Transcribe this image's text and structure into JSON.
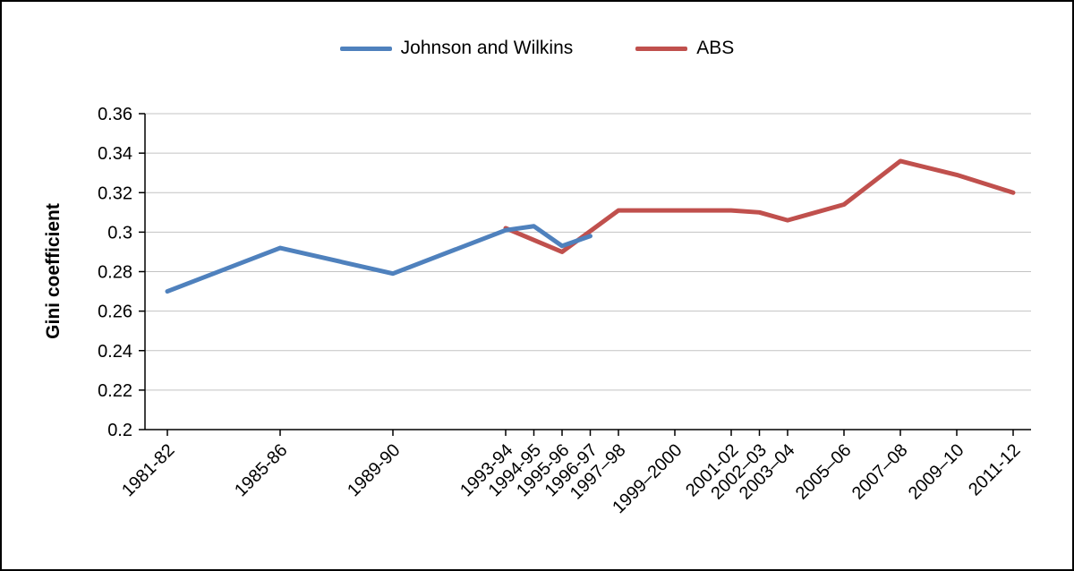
{
  "chart": {
    "ylabel": "Gini coefficient"
  },
  "chart_data": {
    "type": "line",
    "title": "",
    "xlabel": "",
    "ylabel": "Gini coefficient",
    "ylim": [
      0.2,
      0.36
    ],
    "grid": true,
    "legend_position": "top-center",
    "colors": {
      "grid": "#c3c3c3",
      "axis": "#000000",
      "text": "#000000",
      "background": "#ffffff",
      "frame": "#000000"
    },
    "yticks": [
      {
        "value": 0.2,
        "label": "0.2"
      },
      {
        "value": 0.22,
        "label": "0.22"
      },
      {
        "value": 0.24,
        "label": "0.24"
      },
      {
        "value": 0.26,
        "label": "0.26"
      },
      {
        "value": 0.28,
        "label": "0.28"
      },
      {
        "value": 0.3,
        "label": "0.3"
      },
      {
        "value": 0.32,
        "label": "0.32"
      },
      {
        "value": 0.34,
        "label": "0.34"
      },
      {
        "value": 0.36,
        "label": "0.36"
      }
    ],
    "xticks": [
      {
        "year": 1981,
        "label": "1981-82"
      },
      {
        "year": 1985,
        "label": "1985-86"
      },
      {
        "year": 1989,
        "label": "1989-90"
      },
      {
        "year": 1993,
        "label": "1993-94"
      },
      {
        "year": 1994,
        "label": "1994-95"
      },
      {
        "year": 1995,
        "label": "1995-96"
      },
      {
        "year": 1996,
        "label": "1996-97"
      },
      {
        "year": 1997,
        "label": "1997–98"
      },
      {
        "year": 1999,
        "label": "1999–2000"
      },
      {
        "year": 2001,
        "label": "2001-02"
      },
      {
        "year": 2002,
        "label": "2002–03"
      },
      {
        "year": 2003,
        "label": "2003–04"
      },
      {
        "year": 2005,
        "label": "2005–06"
      },
      {
        "year": 2007,
        "label": "2007–08"
      },
      {
        "year": 2009,
        "label": "2009–10"
      },
      {
        "year": 2011,
        "label": "2011-12"
      }
    ],
    "series": [
      {
        "name": "Johnson and Wilkins",
        "color": "#4f81bd",
        "points": [
          [
            1981,
            0.27
          ],
          [
            1985,
            0.292
          ],
          [
            1989,
            0.279
          ],
          [
            1993,
            0.301
          ],
          [
            1994,
            0.303
          ],
          [
            1995,
            0.293
          ],
          [
            1996,
            0.298
          ]
        ]
      },
      {
        "name": "ABS",
        "color": "#c0504d",
        "points": [
          [
            1993,
            0.302
          ],
          [
            1995,
            0.29
          ],
          [
            1997,
            0.311
          ],
          [
            1999,
            0.311
          ],
          [
            2001,
            0.311
          ],
          [
            2002,
            0.31
          ],
          [
            2003,
            0.306
          ],
          [
            2005,
            0.314
          ],
          [
            2007,
            0.336
          ],
          [
            2009,
            0.329
          ],
          [
            2011,
            0.32
          ]
        ]
      }
    ]
  }
}
